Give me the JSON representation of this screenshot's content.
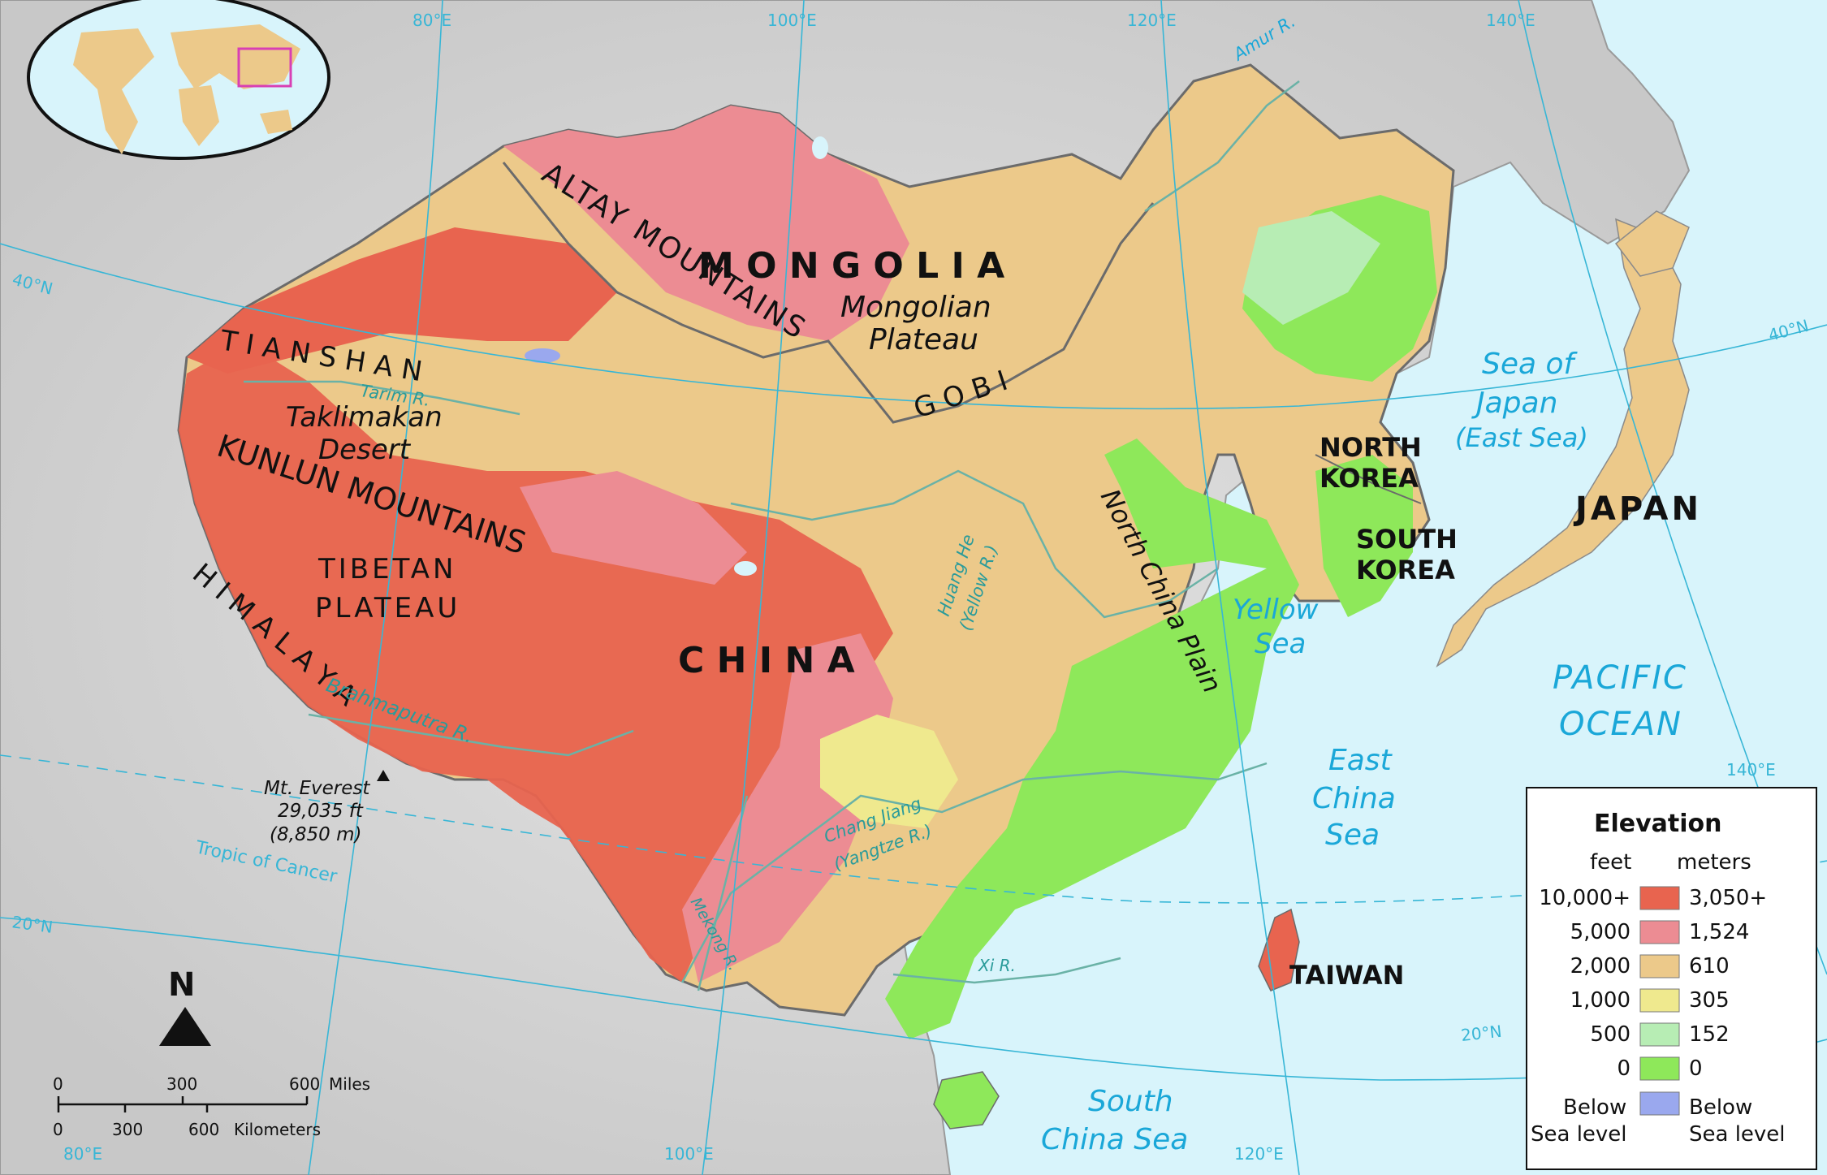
{
  "colors": {
    "ocean": "#d8f4fb",
    "land_gray": "#d6d6d6",
    "elev_3050": "#e8644f",
    "elev_1524": "#ec8c93",
    "elev_610": "#ecc98a",
    "elev_305": "#efe98e",
    "elev_152": "#b7edb4",
    "elev_0": "#8ee85a",
    "below_sea": "#9aa8ee",
    "graticule": "#37b6d6",
    "border": "#6b6b6b"
  },
  "inset": {
    "name": "world-locator"
  },
  "graticule": {
    "lon_top": [
      "80°E",
      "100°E",
      "120°E",
      "140°E"
    ],
    "lon_bottom": [
      "80°E",
      "100°E",
      "120°E"
    ],
    "lon_right": "140°E",
    "lat_left": [
      "40°N",
      "20°N"
    ],
    "lat_right": [
      "40°N",
      "20°N"
    ],
    "tropic": "Tropic of Cancer"
  },
  "countries": {
    "mongolia": "M O N G O L I A",
    "china": "C H I N A",
    "north_korea_1": "NORTH",
    "north_korea_2": "KOREA",
    "south_korea_1": "SOUTH",
    "south_korea_2": "KOREA",
    "japan": "JAPAN",
    "taiwan": "TAIWAN"
  },
  "regions": {
    "altay": "ALTAY MOUNTAINS",
    "mongolian_plateau_1": "Mongolian",
    "mongolian_plateau_2": "Plateau",
    "gobi": "G O B I",
    "tian_shan": "T I A N   S H A N",
    "taklimakan_1": "Taklimakan",
    "taklimakan_2": "Desert",
    "kunlun": "KUNLUN MOUNTAINS",
    "tibetan_1": "TIBETAN",
    "tibetan_2": "PLATEAU",
    "himalaya": "H I M A L A Y A",
    "north_china_plain": "North China Plain",
    "everest_1": "Mt. Everest",
    "everest_2": "29,035 ft",
    "everest_3": "(8,850 m)"
  },
  "waters": {
    "sea_japan_1": "Sea of",
    "sea_japan_2": "Japan",
    "sea_japan_3": "(East Sea)",
    "yellow_1": "Yellow",
    "yellow_2": "Sea",
    "east_china_1": "East",
    "east_china_2": "China",
    "east_china_3": "Sea",
    "pacific_1": "PACIFIC",
    "pacific_2": "OCEAN",
    "south_china_1": "South",
    "south_china_2": "China Sea"
  },
  "rivers": {
    "amur": "Amur R.",
    "tarim": "Tarim R.",
    "huang_1": "Huang He",
    "huang_2": "(Yellow R.)",
    "brahmaputra": "Brahmaputra R.",
    "chang_1": "Chang Jiang",
    "chang_2": "(Yangtze R.)",
    "mekong": "Mekong R.",
    "xi": "Xi R."
  },
  "compass": {
    "label": "N"
  },
  "scale": {
    "miles_ticks": [
      "0",
      "300",
      "600"
    ],
    "miles_unit": "Miles",
    "km_ticks": [
      "0",
      "300",
      "600"
    ],
    "km_unit": "Kilometers"
  },
  "legend": {
    "title": "Elevation",
    "col_feet": "feet",
    "col_meters": "meters",
    "rows": [
      {
        "feet": "10,000+",
        "meters": "3,050+",
        "color": "#e8644f"
      },
      {
        "feet": "5,000",
        "meters": "1,524",
        "color": "#ec8c93"
      },
      {
        "feet": "2,000",
        "meters": "610",
        "color": "#ecc98a"
      },
      {
        "feet": "1,000",
        "meters": "305",
        "color": "#efe98e"
      },
      {
        "feet": "500",
        "meters": "152",
        "color": "#b7edb4"
      },
      {
        "feet": "0",
        "meters": "0",
        "color": "#8ee85a"
      }
    ],
    "below_feet_1": "Below",
    "below_feet_2": "Sea level",
    "below_meters_1": "Below",
    "below_meters_2": "Sea level",
    "below_color": "#9aa8ee"
  }
}
